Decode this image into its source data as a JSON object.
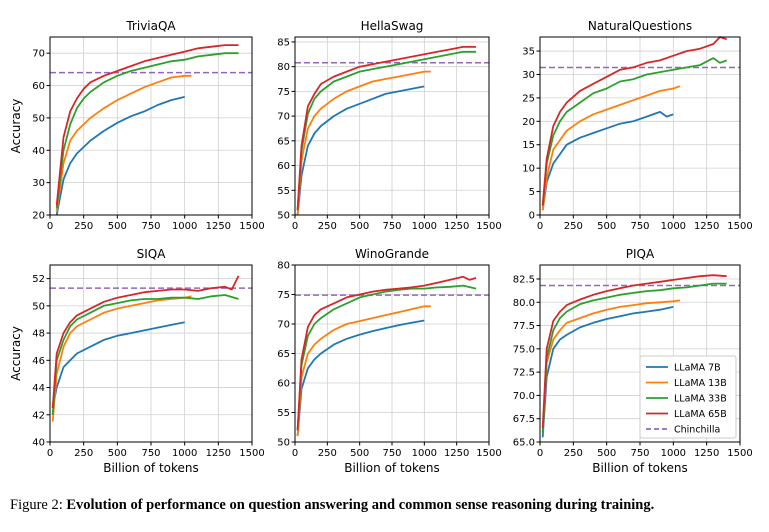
{
  "caption": {
    "label": "Figure 2:",
    "text": "Evolution of performance on question answering and common sense reasoning during training."
  },
  "legend": {
    "position": "lower-right of PIQA panel",
    "entries": [
      {
        "name": "LLaMA 7B",
        "color": "#1f77b4",
        "style": "solid"
      },
      {
        "name": "LLaMA 13B",
        "color": "#ff7f0e",
        "style": "solid"
      },
      {
        "name": "LLaMA 33B",
        "color": "#2ca02c",
        "style": "solid"
      },
      {
        "name": "LLaMA 65B",
        "color": "#d62728",
        "style": "solid"
      },
      {
        "name": "Chinchilla",
        "color": "#9467bd",
        "style": "dashed"
      }
    ]
  },
  "chart_data": [
    {
      "type": "line",
      "title": "TriviaQA",
      "xlabel": "",
      "ylabel": "Accuracy",
      "xlim": [
        0,
        1500
      ],
      "ylim": [
        20,
        75
      ],
      "grid": true,
      "xticks": [
        0,
        250,
        500,
        750,
        1000,
        1250,
        1500
      ],
      "yticks": [
        20,
        30,
        40,
        50,
        60,
        70
      ],
      "series": [
        {
          "name": "LLaMA 7B",
          "x": [
            50,
            100,
            150,
            200,
            250,
            300,
            400,
            500,
            600,
            700,
            800,
            900,
            1000
          ],
          "y": [
            20,
            31,
            36,
            39,
            41,
            43,
            46,
            48.5,
            50.5,
            52,
            54,
            55.5,
            56.5
          ]
        },
        {
          "name": "LLaMA 13B",
          "x": [
            50,
            100,
            150,
            200,
            250,
            300,
            400,
            500,
            600,
            700,
            800,
            900,
            1000,
            1050
          ],
          "y": [
            21,
            36,
            43,
            46,
            48,
            50,
            53,
            55.5,
            57.5,
            59.5,
            61,
            62.5,
            63,
            63
          ]
        },
        {
          "name": "LLaMA 33B",
          "x": [
            50,
            100,
            150,
            200,
            250,
            300,
            400,
            500,
            600,
            700,
            800,
            900,
            1000,
            1100,
            1200,
            1300,
            1400
          ],
          "y": [
            22,
            40,
            48,
            53,
            56,
            58,
            61,
            63,
            64.5,
            65.5,
            66.5,
            67.5,
            68,
            69,
            69.5,
            70,
            70
          ]
        },
        {
          "name": "LLaMA 65B",
          "x": [
            50,
            100,
            150,
            200,
            250,
            300,
            400,
            500,
            600,
            700,
            800,
            900,
            1000,
            1100,
            1200,
            1300,
            1400
          ],
          "y": [
            23,
            44,
            52,
            56,
            59,
            61,
            63,
            64.5,
            66,
            67.5,
            68.5,
            69.5,
            70.5,
            71.5,
            72,
            72.5,
            72.5
          ]
        }
      ],
      "reference": {
        "name": "Chinchilla",
        "y": 64
      }
    },
    {
      "type": "line",
      "title": "HellaSwag",
      "xlabel": "",
      "ylabel": "",
      "xlim": [
        0,
        1500
      ],
      "ylim": [
        50,
        86
      ],
      "grid": true,
      "xticks": [
        0,
        250,
        500,
        750,
        1000,
        1250,
        1500
      ],
      "yticks": [
        50,
        55,
        60,
        65,
        70,
        75,
        80,
        85
      ],
      "series": [
        {
          "name": "LLaMA 7B",
          "x": [
            20,
            50,
            100,
            150,
            200,
            300,
            400,
            500,
            600,
            700,
            800,
            900,
            1000
          ],
          "y": [
            50,
            58,
            64,
            66.5,
            68,
            70,
            71.5,
            72.5,
            73.5,
            74.5,
            75,
            75.5,
            76
          ]
        },
        {
          "name": "LLaMA 13B",
          "x": [
            20,
            50,
            100,
            150,
            200,
            300,
            400,
            500,
            600,
            700,
            800,
            900,
            1000,
            1050
          ],
          "y": [
            50,
            61,
            67.5,
            70,
            71.5,
            73.5,
            75,
            76,
            77,
            77.5,
            78,
            78.5,
            79,
            79
          ]
        },
        {
          "name": "LLaMA 33B",
          "x": [
            20,
            50,
            100,
            150,
            200,
            300,
            400,
            500,
            600,
            700,
            800,
            900,
            1000,
            1100,
            1200,
            1300,
            1400
          ],
          "y": [
            51,
            63,
            70.5,
            73.5,
            75,
            77,
            78,
            79,
            79.5,
            80,
            80.5,
            81,
            81.5,
            82,
            82.5,
            83,
            83
          ]
        },
        {
          "name": "LLaMA 65B",
          "x": [
            20,
            50,
            100,
            150,
            200,
            300,
            400,
            500,
            600,
            700,
            800,
            900,
            1000,
            1100,
            1200,
            1300,
            1400
          ],
          "y": [
            51,
            64,
            72,
            74.5,
            76.5,
            78,
            79,
            80,
            80.5,
            81,
            81.5,
            82,
            82.5,
            83,
            83.5,
            84,
            84
          ]
        }
      ],
      "reference": {
        "name": "Chinchilla",
        "y": 80.8
      }
    },
    {
      "type": "line",
      "title": "NaturalQuestions",
      "xlabel": "",
      "ylabel": "",
      "xlim": [
        0,
        1500
      ],
      "ylim": [
        0,
        38
      ],
      "grid": true,
      "xticks": [
        0,
        250,
        500,
        750,
        1000,
        1250,
        1500
      ],
      "yticks": [
        0,
        5,
        10,
        15,
        20,
        25,
        30,
        35
      ],
      "series": [
        {
          "name": "LLaMA 7B",
          "x": [
            20,
            50,
            100,
            150,
            200,
            300,
            400,
            500,
            600,
            700,
            800,
            900,
            950,
            1000
          ],
          "y": [
            1,
            7,
            11,
            13,
            15,
            16.5,
            17.5,
            18.5,
            19.5,
            20,
            21,
            22,
            21,
            21.5
          ]
        },
        {
          "name": "LLaMA 13B",
          "x": [
            20,
            50,
            100,
            150,
            200,
            300,
            400,
            500,
            600,
            700,
            800,
            900,
            1000,
            1050
          ],
          "y": [
            1,
            8,
            14,
            16,
            18,
            20,
            21.5,
            22.5,
            23.5,
            24.5,
            25.5,
            26.5,
            27,
            27.5
          ]
        },
        {
          "name": "LLaMA 33B",
          "x": [
            20,
            50,
            100,
            150,
            200,
            300,
            400,
            500,
            600,
            700,
            800,
            900,
            1000,
            1100,
            1200,
            1300,
            1350,
            1400
          ],
          "y": [
            2,
            11,
            17,
            20,
            22,
            24,
            26,
            27,
            28.5,
            29,
            30,
            30.5,
            31,
            31.5,
            32,
            33.5,
            32.5,
            33
          ]
        },
        {
          "name": "LLaMA 65B",
          "x": [
            20,
            50,
            100,
            150,
            200,
            300,
            400,
            500,
            600,
            700,
            800,
            900,
            1000,
            1100,
            1200,
            1300,
            1350,
            1400
          ],
          "y": [
            2,
            12,
            19,
            22,
            24,
            26.5,
            28,
            29.5,
            31,
            31.5,
            32.5,
            33,
            34,
            35,
            35.5,
            36.5,
            38,
            37.5
          ]
        }
      ],
      "reference": {
        "name": "Chinchilla",
        "y": 31.5
      }
    },
    {
      "type": "line",
      "title": "SIQA",
      "xlabel": "Billion of tokens",
      "ylabel": "Accuracy",
      "xlim": [
        0,
        1500
      ],
      "ylim": [
        40,
        53
      ],
      "grid": true,
      "xticks": [
        0,
        250,
        500,
        750,
        1000,
        1250,
        1500
      ],
      "yticks": [
        40,
        42,
        44,
        46,
        48,
        50,
        52
      ],
      "series": [
        {
          "name": "LLaMA 7B",
          "x": [
            20,
            50,
            100,
            150,
            200,
            300,
            400,
            500,
            600,
            700,
            800,
            900,
            1000
          ],
          "y": [
            42.5,
            44,
            45.5,
            46,
            46.5,
            47,
            47.5,
            47.8,
            48,
            48.2,
            48.4,
            48.6,
            48.8
          ]
        },
        {
          "name": "LLaMA 13B",
          "x": [
            20,
            50,
            100,
            150,
            200,
            300,
            400,
            500,
            600,
            700,
            800,
            900,
            1000,
            1050
          ],
          "y": [
            41.5,
            45,
            47,
            48,
            48.5,
            49,
            49.5,
            49.8,
            50,
            50.2,
            50.4,
            50.5,
            50.6,
            50.7
          ]
        },
        {
          "name": "LLaMA 33B",
          "x": [
            20,
            50,
            100,
            150,
            200,
            300,
            400,
            500,
            600,
            700,
            800,
            900,
            1000,
            1100,
            1200,
            1300,
            1400
          ],
          "y": [
            42,
            46,
            47.5,
            48.5,
            49,
            49.5,
            50,
            50.2,
            50.4,
            50.5,
            50.5,
            50.6,
            50.6,
            50.5,
            50.7,
            50.8,
            50.5
          ]
        },
        {
          "name": "LLaMA 65B",
          "x": [
            20,
            50,
            100,
            150,
            200,
            300,
            400,
            500,
            600,
            700,
            800,
            900,
            1000,
            1100,
            1200,
            1300,
            1350,
            1400
          ],
          "y": [
            42.5,
            46.5,
            48,
            48.8,
            49.3,
            49.8,
            50.3,
            50.6,
            50.8,
            51,
            51.1,
            51.2,
            51.2,
            51.1,
            51.3,
            51.4,
            51.2,
            52.2
          ]
        }
      ],
      "reference": {
        "name": "Chinchilla",
        "y": 51.3
      }
    },
    {
      "type": "line",
      "title": "WinoGrande",
      "xlabel": "Billion of tokens",
      "ylabel": "",
      "xlim": [
        0,
        1500
      ],
      "ylim": [
        50,
        80
      ],
      "grid": true,
      "xticks": [
        0,
        250,
        500,
        750,
        1000,
        1250,
        1500
      ],
      "yticks": [
        50,
        55,
        60,
        65,
        70,
        75,
        80
      ],
      "series": [
        {
          "name": "LLaMA 7B",
          "x": [
            20,
            50,
            100,
            150,
            200,
            300,
            400,
            500,
            600,
            700,
            800,
            900,
            1000
          ],
          "y": [
            51,
            59,
            62.5,
            64,
            65,
            66.5,
            67.5,
            68.2,
            68.8,
            69.3,
            69.8,
            70.2,
            70.6
          ]
        },
        {
          "name": "LLaMA 13B",
          "x": [
            20,
            50,
            100,
            150,
            200,
            300,
            400,
            500,
            600,
            700,
            800,
            900,
            1000,
            1050
          ],
          "y": [
            51,
            61,
            65,
            66.5,
            67.5,
            69,
            70,
            70.5,
            71,
            71.5,
            72,
            72.5,
            73,
            73
          ]
        },
        {
          "name": "LLaMA 33B",
          "x": [
            20,
            50,
            100,
            150,
            200,
            300,
            400,
            500,
            600,
            700,
            800,
            900,
            1000,
            1100,
            1200,
            1300,
            1400
          ],
          "y": [
            52,
            63,
            68,
            70,
            71,
            72.5,
            73.5,
            74.5,
            75,
            75.5,
            75.8,
            76,
            76,
            76.2,
            76.3,
            76.5,
            76
          ]
        },
        {
          "name": "LLaMA 65B",
          "x": [
            20,
            50,
            100,
            150,
            200,
            300,
            400,
            500,
            600,
            700,
            800,
            900,
            1000,
            1100,
            1200,
            1300,
            1350,
            1400
          ],
          "y": [
            52,
            64,
            69.5,
            71.5,
            72.5,
            73.5,
            74.5,
            75,
            75.5,
            75.8,
            76,
            76.2,
            76.5,
            77,
            77.5,
            78,
            77.5,
            77.8
          ]
        }
      ],
      "reference": {
        "name": "Chinchilla",
        "y": 74.9
      }
    },
    {
      "type": "line",
      "title": "PIQA",
      "xlabel": "Billion of tokens",
      "ylabel": "",
      "xlim": [
        0,
        1500
      ],
      "ylim": [
        65,
        84
      ],
      "grid": true,
      "xticks": [
        0,
        250,
        500,
        750,
        1000,
        1250,
        1500
      ],
      "yticks": [
        65.0,
        67.5,
        70.0,
        72.5,
        75.0,
        77.5,
        80.0,
        82.5
      ],
      "series": [
        {
          "name": "LLaMA 7B",
          "x": [
            20,
            50,
            100,
            150,
            200,
            300,
            400,
            500,
            600,
            700,
            800,
            900,
            1000
          ],
          "y": [
            65.5,
            72,
            75,
            76,
            76.5,
            77.3,
            77.8,
            78.2,
            78.5,
            78.8,
            79,
            79.2,
            79.5
          ]
        },
        {
          "name": "LLaMA 13B",
          "x": [
            20,
            50,
            100,
            150,
            200,
            300,
            400,
            500,
            600,
            700,
            800,
            900,
            1000,
            1050
          ],
          "y": [
            66,
            73.5,
            76,
            77,
            77.8,
            78.3,
            78.8,
            79.2,
            79.5,
            79.7,
            79.9,
            80,
            80.1,
            80.2
          ]
        },
        {
          "name": "LLaMA 33B",
          "x": [
            20,
            50,
            100,
            150,
            200,
            300,
            400,
            500,
            600,
            700,
            800,
            900,
            1000,
            1100,
            1200,
            1300,
            1400
          ],
          "y": [
            66,
            74,
            77,
            78.3,
            79,
            79.8,
            80.2,
            80.5,
            80.8,
            81,
            81.2,
            81.3,
            81.5,
            81.6,
            81.8,
            82,
            82
          ]
        },
        {
          "name": "LLaMA 65B",
          "x": [
            20,
            50,
            100,
            150,
            200,
            300,
            400,
            500,
            600,
            700,
            800,
            900,
            1000,
            1100,
            1200,
            1300,
            1400
          ],
          "y": [
            66.5,
            75,
            78,
            79,
            79.7,
            80.3,
            80.8,
            81.2,
            81.5,
            81.8,
            82,
            82.2,
            82.4,
            82.6,
            82.8,
            82.9,
            82.8
          ]
        }
      ],
      "reference": {
        "name": "Chinchilla",
        "y": 81.8
      }
    }
  ]
}
